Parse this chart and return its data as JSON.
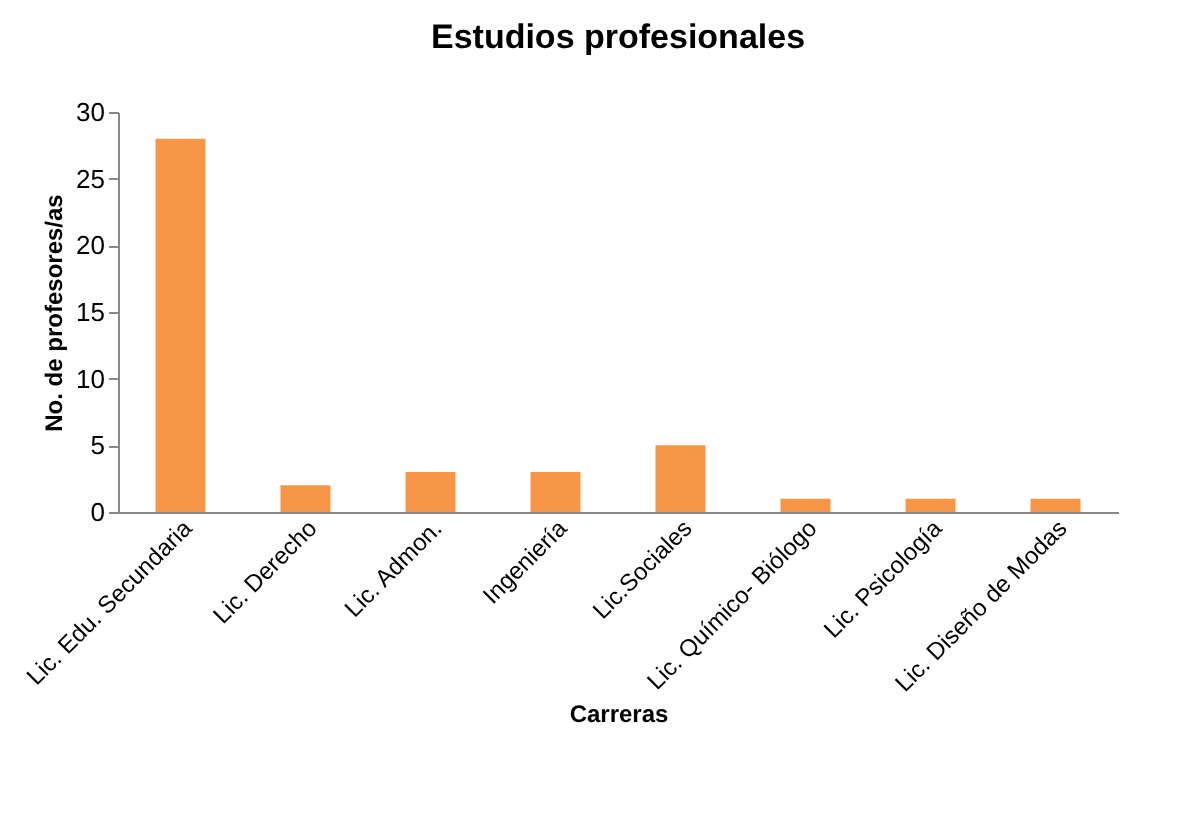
{
  "chart_data": {
    "type": "bar",
    "title": "Estudios profesionales",
    "xlabel": "Carreras",
    "ylabel": "No. de profesores/as",
    "categories": [
      "Lic. Edu. Secundaria",
      "Lic. Derecho",
      "Lic. Admon.",
      "Ingeniería",
      "Lic.Sociales",
      "Lic. Químico- Biólogo",
      "Lic. Psicología",
      "Lic. Diseño de Modas"
    ],
    "values": [
      28,
      2,
      3,
      3,
      5,
      1,
      1,
      1
    ],
    "color": "#f79646",
    "ylim": [
      0,
      30
    ],
    "yticks": [
      0,
      5,
      10,
      15,
      20,
      25,
      30
    ],
    "grid": false
  }
}
